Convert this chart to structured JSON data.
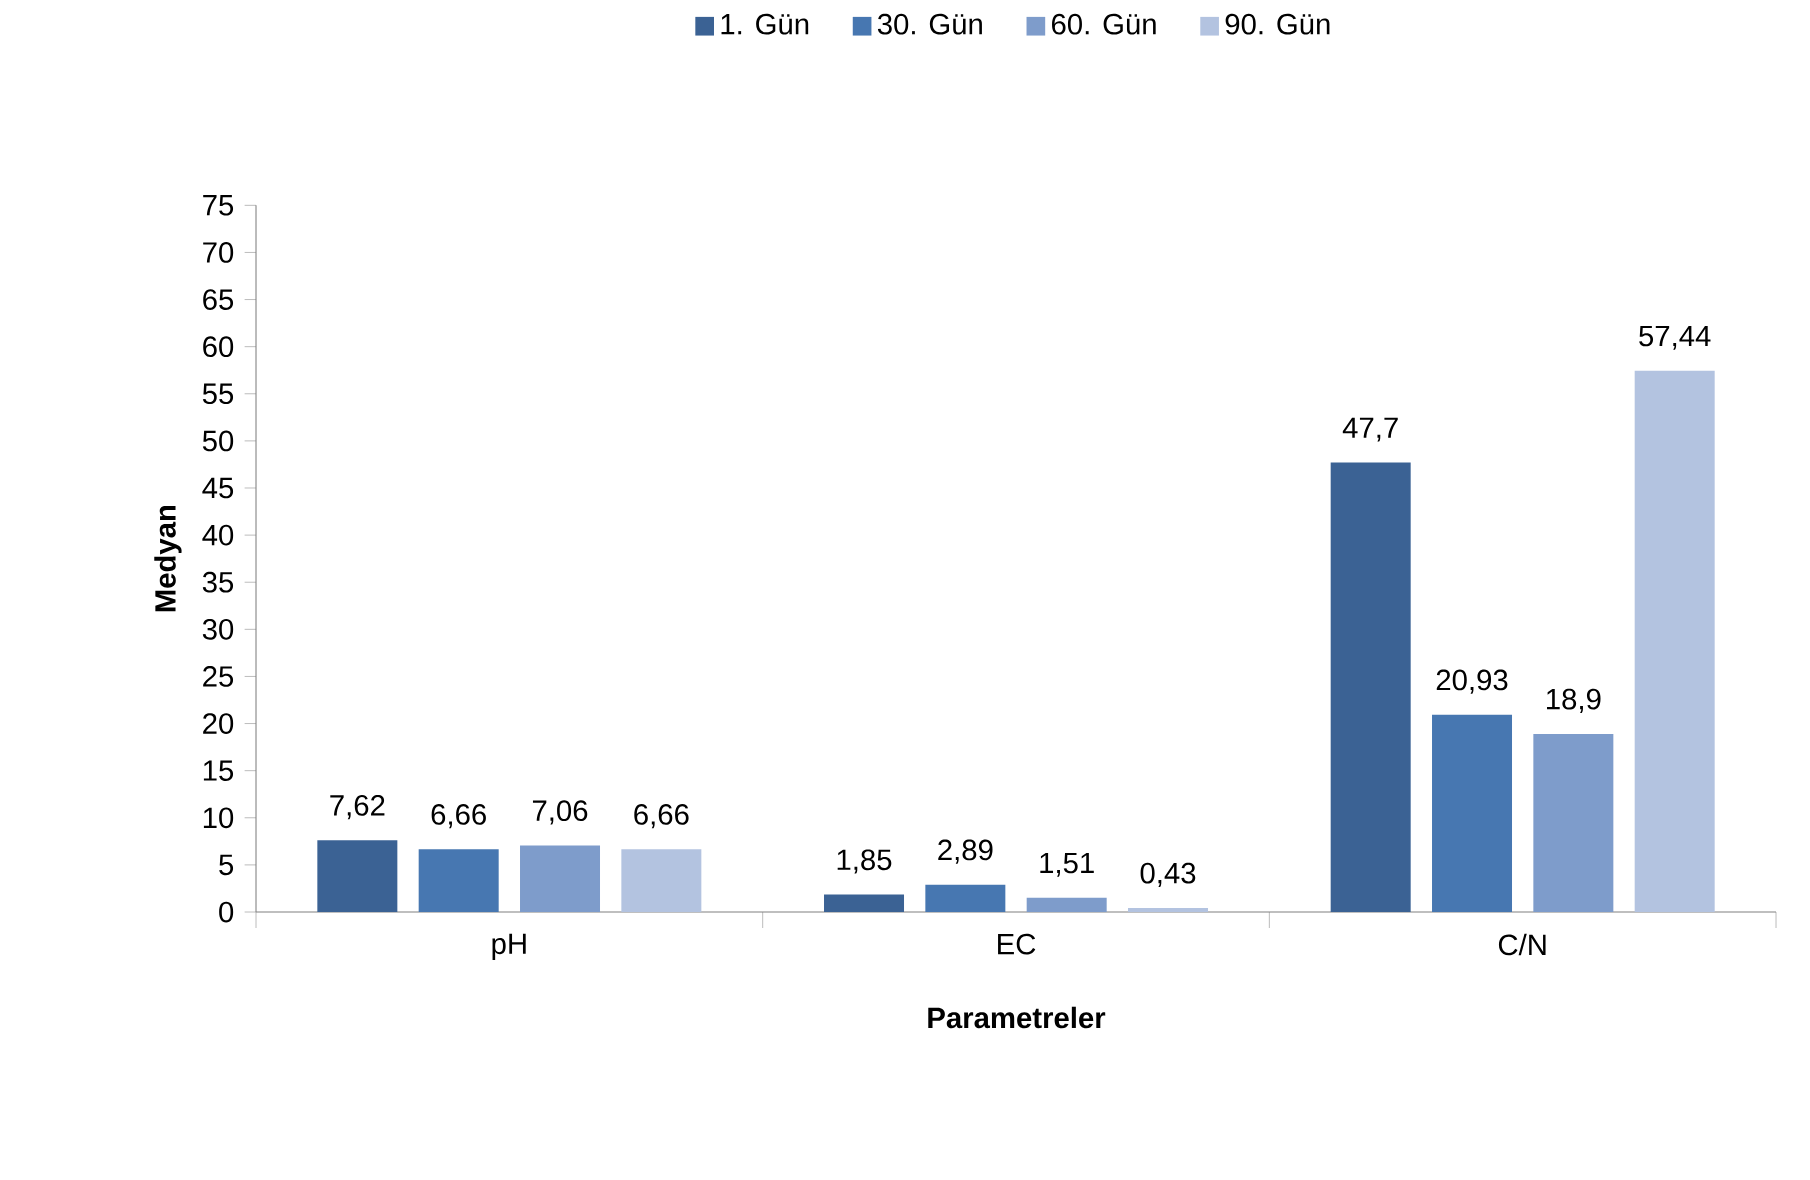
{
  "chart_data": {
    "type": "bar",
    "xlabel": "Parametreler",
    "ylabel": "Medyan",
    "categories": [
      "pH",
      "EC",
      "C/N"
    ],
    "series": [
      {
        "name": "1. Gün",
        "color": "#3b6294",
        "values": [
          7.62,
          1.85,
          47.7
        ],
        "value_labels": [
          "7,62",
          "1,85",
          "47,7"
        ]
      },
      {
        "name": "30. Gün",
        "color": "#4777b1",
        "values": [
          6.66,
          2.89,
          20.93
        ],
        "value_labels": [
          "6,66",
          "2,89",
          "20,93"
        ]
      },
      {
        "name": "60. Gün",
        "color": "#7e9ccb",
        "values": [
          7.06,
          1.51,
          18.9
        ],
        "value_labels": [
          "7,06",
          "1,51",
          "18,9"
        ]
      },
      {
        "name": "90. Gün",
        "color": "#b3c3e0",
        "values": [
          6.66,
          0.43,
          57.44
        ],
        "value_labels": [
          "6,66",
          "0,43",
          "57,44"
        ]
      }
    ],
    "ylim": [
      0,
      75
    ],
    "yticks": [
      0,
      5,
      10,
      15,
      20,
      25,
      30,
      35,
      40,
      45,
      50,
      55,
      60,
      65,
      70,
      75
    ],
    "grid": false,
    "legend": "top"
  }
}
